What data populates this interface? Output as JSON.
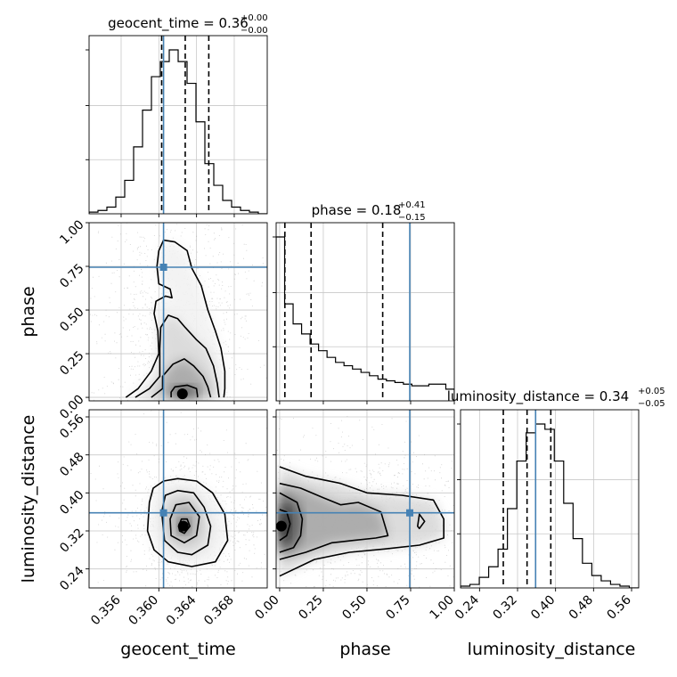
{
  "chart_data": {
    "type": "corner",
    "parameters": [
      "geocent_time",
      "phase",
      "luminosity_distance"
    ],
    "truths": {
      "geocent_time": 0.3605,
      "phase": 0.745,
      "luminosity_distance": 0.358
    },
    "titles": [
      {
        "param": "geocent_time",
        "text": "geocent_time = 0.36",
        "sup": "+0.00",
        "sub": "−0.00"
      },
      {
        "param": "phase",
        "text": "phase = 0.18",
        "sup": "+0.41",
        "sub": "−0.15"
      },
      {
        "param": "luminosity_distance",
        "text": "luminosity_distance = 0.34",
        "sup": "+0.05",
        "sub": "−0.05"
      }
    ],
    "axes": {
      "geocent_time": {
        "label": "geocent_time",
        "range": [
          0.3526,
          0.3715
        ],
        "ticks": [
          0.356,
          0.36,
          0.364,
          0.368
        ],
        "tick_labels": [
          "0.356",
          "0.360",
          "0.364",
          "0.368"
        ]
      },
      "phase": {
        "label": "phase",
        "range": [
          -0.02,
          1.0
        ],
        "ticks": [
          0.0,
          0.25,
          0.5,
          0.75,
          1.0
        ],
        "tick_labels": [
          "0.00",
          "0.25",
          "0.50",
          "0.75",
          "1.00"
        ]
      },
      "luminosity_distance": {
        "label": "luminosity_distance",
        "range": [
          0.2,
          0.575
        ],
        "ticks": [
          0.24,
          0.32,
          0.4,
          0.48,
          0.56
        ],
        "tick_labels": [
          "0.24",
          "0.32",
          "0.40",
          "0.48",
          "0.56"
        ]
      }
    },
    "histograms": [
      {
        "param": "geocent_time",
        "x_start": 0.3526,
        "x_end": 0.3715,
        "values": [
          1,
          2,
          4,
          10,
          20,
          40,
          62,
          82,
          91,
          98,
          91,
          78,
          55,
          30,
          17,
          8,
          4,
          2,
          1,
          0
        ],
        "quantiles": [
          0.3603,
          0.3628,
          0.3653
        ]
      },
      {
        "param": "phase",
        "x_start": -0.02,
        "x_end": 1.0,
        "values": [
          98,
          58,
          46,
          40,
          34,
          30,
          26,
          23,
          21,
          19,
          17,
          15,
          13,
          12,
          11,
          10,
          9,
          9,
          10,
          10,
          7
        ],
        "quantiles": [
          0.03,
          0.18,
          0.59
        ]
      },
      {
        "param": "luminosity_distance",
        "x_start": 0.2,
        "x_end": 0.575,
        "values": [
          1,
          2,
          6,
          12,
          22,
          45,
          72,
          88,
          93,
          90,
          72,
          48,
          28,
          14,
          7,
          4,
          2,
          1,
          0
        ],
        "quantiles": [
          0.29,
          0.34,
          0.39
        ]
      }
    ],
    "density_panels": [
      {
        "x": "geocent_time",
        "y": "phase",
        "peak": {
          "x": 0.3625,
          "y": 0.02
        },
        "contours": [
          [
            [
              0.3613,
              0
            ],
            [
              0.3613,
              0.03
            ],
            [
              0.3617,
              0.06
            ],
            [
              0.363,
              0.07
            ],
            [
              0.364,
              0.05
            ],
            [
              0.3641,
              0.01
            ],
            [
              0.3641,
              0
            ]
          ],
          [
            [
              0.3592,
              0
            ],
            [
              0.3604,
              0.05
            ],
            [
              0.3604,
              0.12
            ],
            [
              0.3615,
              0.19
            ],
            [
              0.3627,
              0.22
            ],
            [
              0.3637,
              0.18
            ],
            [
              0.3647,
              0.12
            ],
            [
              0.3652,
              0.06
            ],
            [
              0.3655,
              0
            ]
          ],
          [
            [
              0.3575,
              0
            ],
            [
              0.359,
              0.05
            ],
            [
              0.3601,
              0.12
            ],
            [
              0.3601,
              0.28
            ],
            [
              0.3602,
              0.4
            ],
            [
              0.361,
              0.47
            ],
            [
              0.362,
              0.45
            ],
            [
              0.3628,
              0.4
            ],
            [
              0.364,
              0.33
            ],
            [
              0.365,
              0.28
            ],
            [
              0.3658,
              0.18
            ],
            [
              0.3662,
              0.08
            ],
            [
              0.3664,
              0
            ]
          ],
          [
            [
              0.3565,
              0
            ],
            [
              0.3578,
              0.05
            ],
            [
              0.3592,
              0.15
            ],
            [
              0.36,
              0.25
            ],
            [
              0.3599,
              0.38
            ],
            [
              0.3595,
              0.48
            ],
            [
              0.3597,
              0.55
            ],
            [
              0.3607,
              0.58
            ],
            [
              0.3614,
              0.57
            ],
            [
              0.3612,
              0.62
            ],
            [
              0.36,
              0.65
            ],
            [
              0.3598,
              0.75
            ],
            [
              0.36,
              0.84
            ],
            [
              0.3605,
              0.9
            ],
            [
              0.3617,
              0.89
            ],
            [
              0.363,
              0.84
            ],
            [
              0.3635,
              0.74
            ],
            [
              0.3645,
              0.64
            ],
            [
              0.3652,
              0.5
            ],
            [
              0.366,
              0.38
            ],
            [
              0.3666,
              0.28
            ],
            [
              0.367,
              0.15
            ],
            [
              0.367,
              0.05
            ],
            [
              0.3669,
              0
            ]
          ]
        ]
      },
      {
        "x": "geocent_time",
        "y": "luminosity_distance",
        "peak": {
          "x": 0.3626,
          "y": 0.33
        },
        "contours": [
          [
            [
              0.3621,
              0.33
            ],
            [
              0.3624,
              0.345
            ],
            [
              0.363,
              0.345
            ],
            [
              0.3633,
              0.33
            ],
            [
              0.3627,
              0.315
            ],
            [
              0.3622,
              0.32
            ]
          ],
          [
            [
              0.3612,
              0.345
            ],
            [
              0.3618,
              0.375
            ],
            [
              0.3632,
              0.38
            ],
            [
              0.3643,
              0.35
            ],
            [
              0.364,
              0.31
            ],
            [
              0.3627,
              0.295
            ],
            [
              0.3613,
              0.31
            ]
          ],
          [
            [
              0.3603,
              0.36
            ],
            [
              0.3607,
              0.395
            ],
            [
              0.362,
              0.405
            ],
            [
              0.3637,
              0.4
            ],
            [
              0.3648,
              0.37
            ],
            [
              0.3655,
              0.33
            ],
            [
              0.3652,
              0.29
            ],
            [
              0.3635,
              0.27
            ],
            [
              0.362,
              0.275
            ],
            [
              0.3606,
              0.3
            ]
          ],
          [
            [
              0.359,
              0.38
            ],
            [
              0.3594,
              0.41
            ],
            [
              0.3605,
              0.425
            ],
            [
              0.362,
              0.43
            ],
            [
              0.364,
              0.425
            ],
            [
              0.3657,
              0.4
            ],
            [
              0.367,
              0.355
            ],
            [
              0.3673,
              0.3
            ],
            [
              0.366,
              0.255
            ],
            [
              0.3635,
              0.245
            ],
            [
              0.361,
              0.255
            ],
            [
              0.3595,
              0.28
            ],
            [
              0.3588,
              0.32
            ]
          ]
        ]
      },
      {
        "x": "phase",
        "y": "luminosity_distance",
        "peak": {
          "x": 0.01,
          "y": 0.33
        },
        "contours": [
          [
            [
              0,
              0.3
            ],
            [
              0.04,
              0.31
            ],
            [
              0.06,
              0.335
            ],
            [
              0.04,
              0.36
            ],
            [
              0,
              0.365
            ]
          ],
          [
            [
              0,
              0.275
            ],
            [
              0.08,
              0.285
            ],
            [
              0.12,
              0.31
            ],
            [
              0.13,
              0.345
            ],
            [
              0.1,
              0.38
            ],
            [
              0,
              0.4
            ]
          ],
          [
            [
              0,
              0.26
            ],
            [
              0.15,
              0.275
            ],
            [
              0.3,
              0.295
            ],
            [
              0.42,
              0.3
            ],
            [
              0.55,
              0.305
            ],
            [
              0.62,
              0.31
            ],
            [
              0.58,
              0.36
            ],
            [
              0.45,
              0.38
            ],
            [
              0.35,
              0.375
            ],
            [
              0.25,
              0.39
            ],
            [
              0.12,
              0.41
            ],
            [
              0,
              0.42
            ]
          ],
          [
            [
              0,
              0.225
            ],
            [
              0.2,
              0.26
            ],
            [
              0.4,
              0.275
            ],
            [
              0.6,
              0.282
            ],
            [
              0.8,
              0.29
            ],
            [
              0.94,
              0.305
            ],
            [
              0.94,
              0.345
            ],
            [
              0.88,
              0.385
            ],
            [
              0.7,
              0.395
            ],
            [
              0.5,
              0.4
            ],
            [
              0.35,
              0.42
            ],
            [
              0.15,
              0.435
            ],
            [
              0,
              0.455
            ]
          ],
          [
            [
              0.79,
              0.33
            ],
            [
              0.8,
              0.355
            ],
            [
              0.83,
              0.34
            ],
            [
              0.8,
              0.325
            ]
          ]
        ]
      }
    ]
  }
}
